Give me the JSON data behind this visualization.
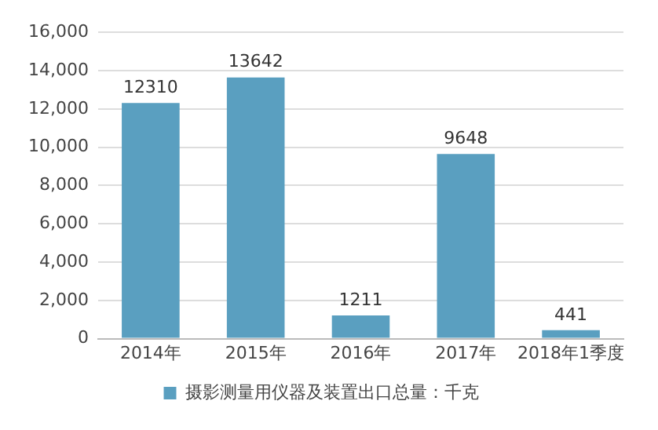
{
  "chart_data": {
    "type": "bar",
    "categories": [
      "2014年",
      "2015年",
      "2016年",
      "2017年",
      "2018年1季度"
    ],
    "series": [
      {
        "name": "摄影测量用仪器及装置出口总量：千克",
        "color": "#5a9fc0",
        "values": [
          12310,
          13642,
          1211,
          9648,
          441
        ]
      }
    ],
    "ylim": [
      0,
      16000
    ],
    "yticks": [
      0,
      {
        "value": 2000,
        "label": "2,000"
      },
      {
        "value": 4000,
        "label": "4,000"
      },
      {
        "value": 6000,
        "label": "6,000"
      },
      {
        "value": 8000,
        "label": "8,000"
      },
      {
        "value": 10000,
        "label": "10,000"
      },
      {
        "value": 12000,
        "label": "12,000"
      },
      {
        "value": 14000,
        "label": "14,000"
      },
      {
        "value": 16000,
        "label": "16,000"
      }
    ],
    "grid": "y",
    "legend": "bottom",
    "data_labels": true
  }
}
